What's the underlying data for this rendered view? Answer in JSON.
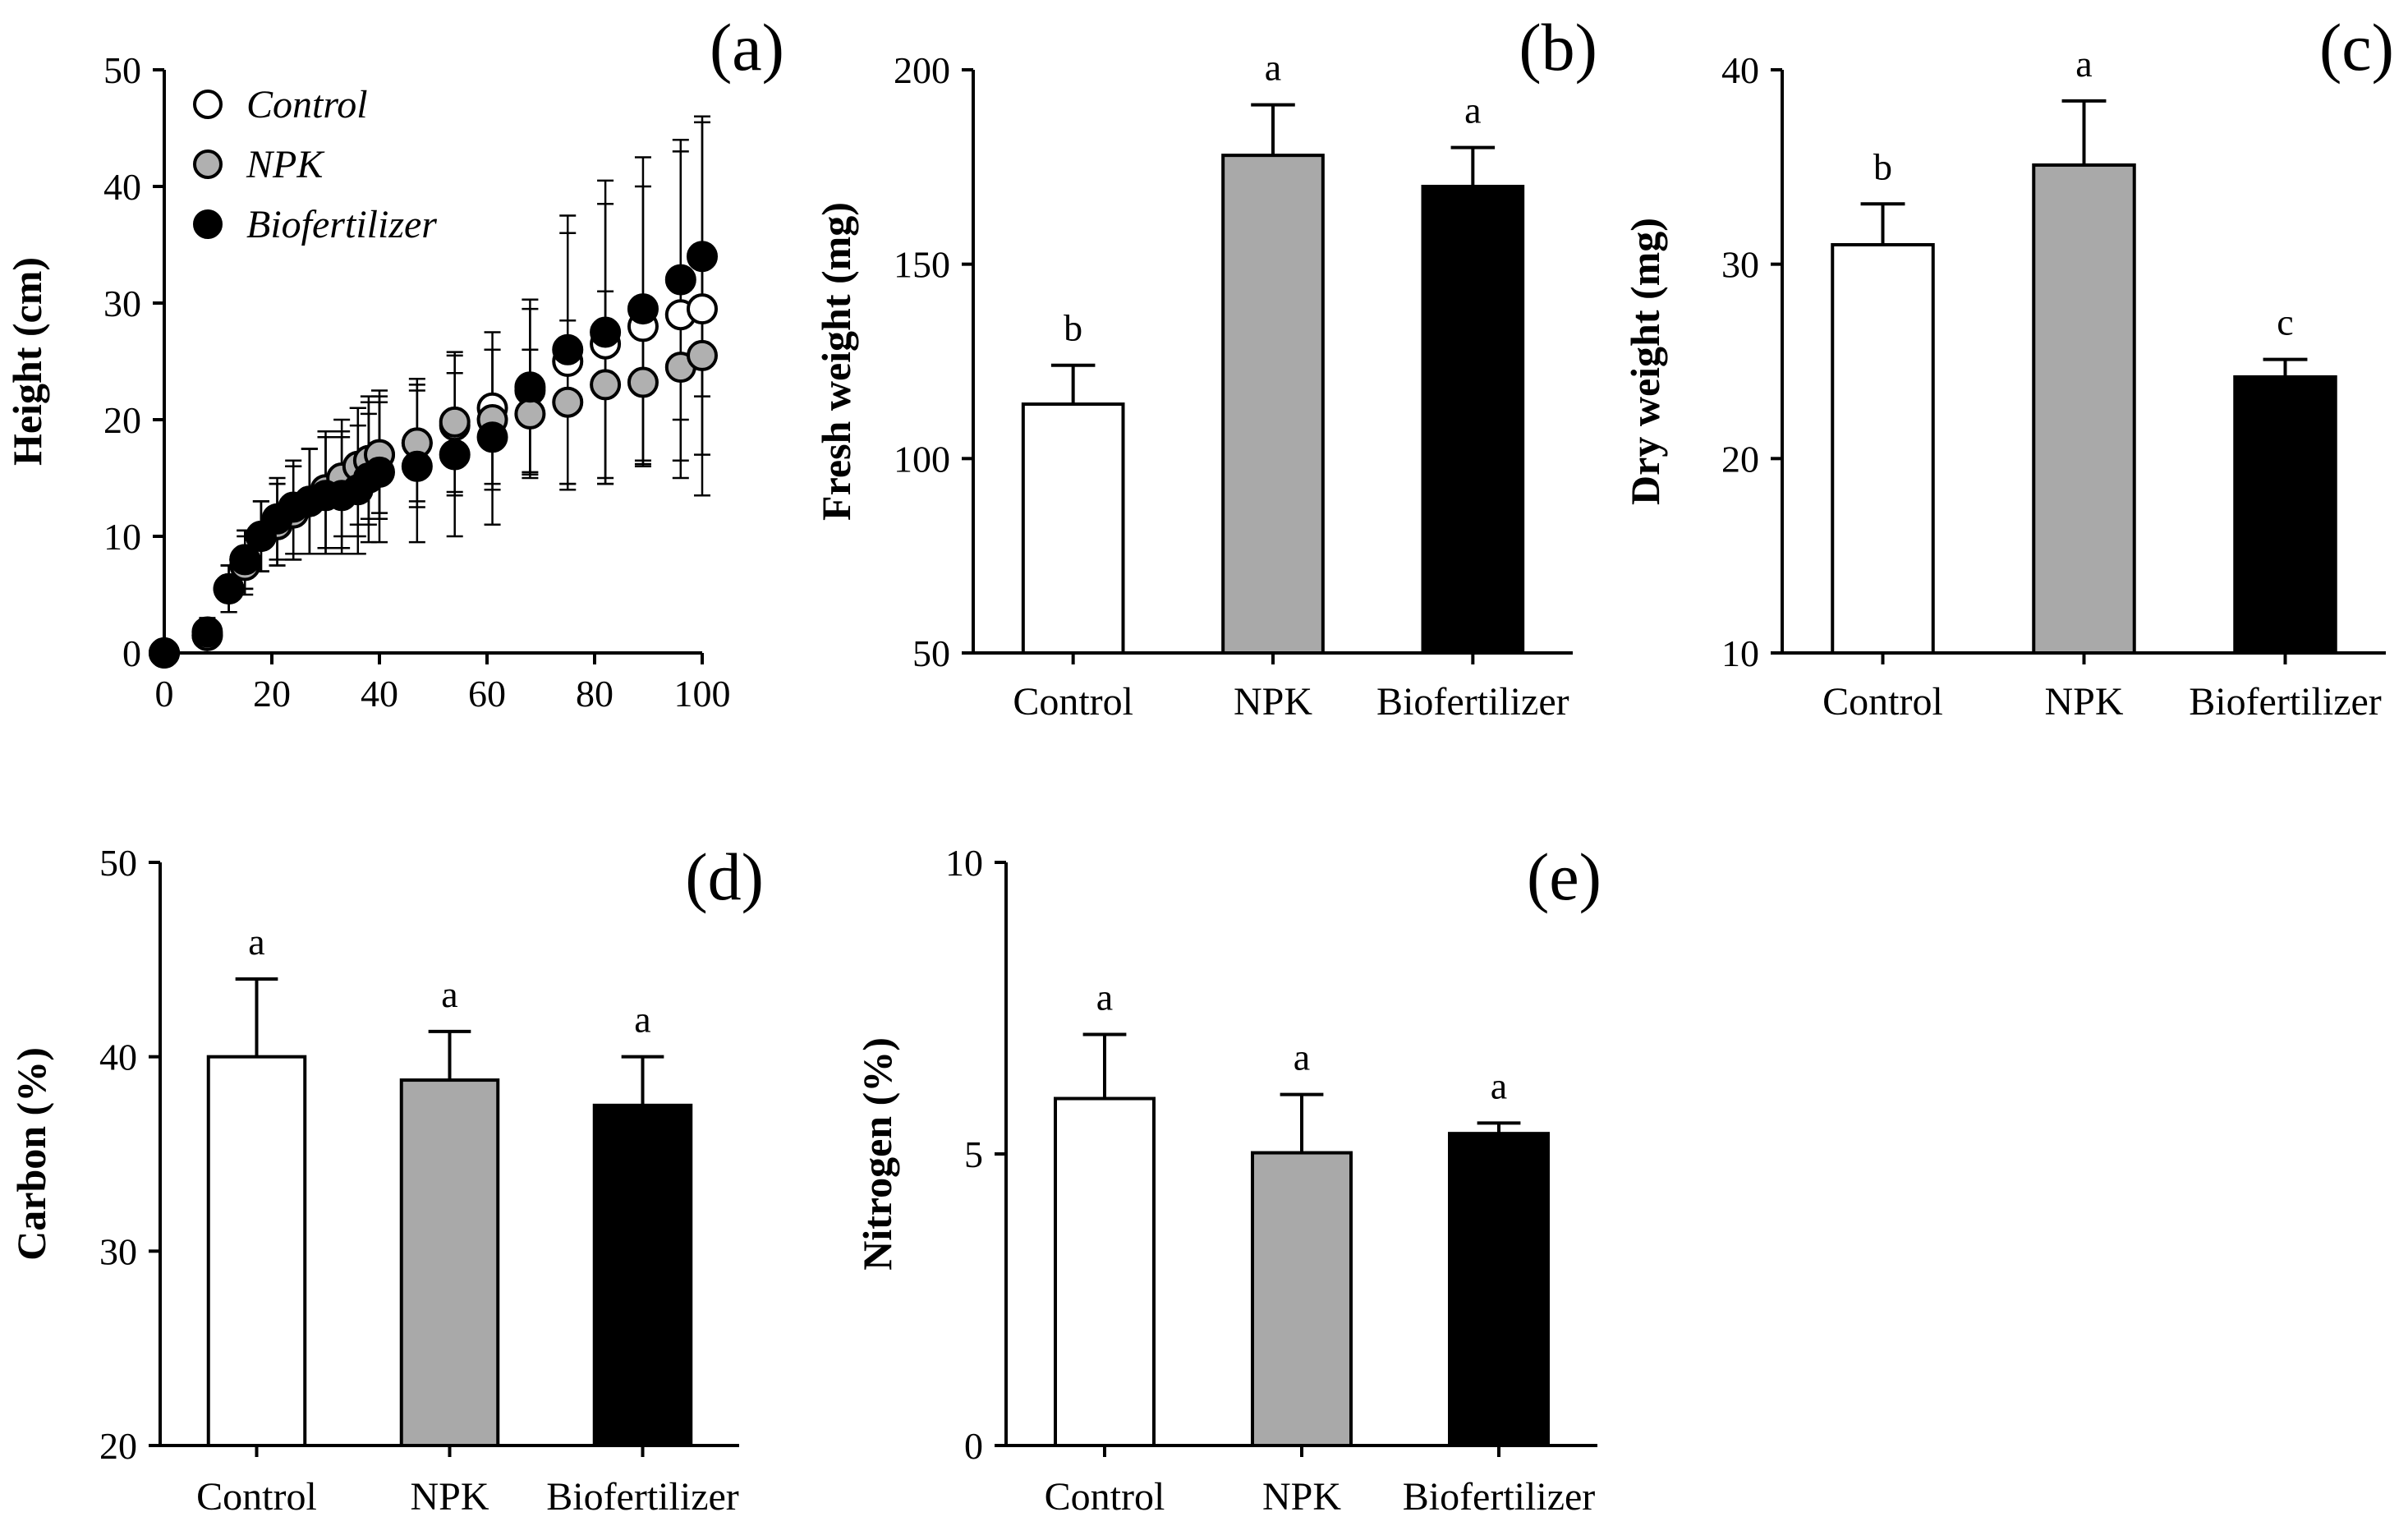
{
  "chart_data": [
    {
      "id": "a",
      "panel_label": "(a)",
      "type": "scatter",
      "xlabel": "",
      "ylabel": "Height (cm)",
      "xlim": [
        0,
        100
      ],
      "ylim": [
        0,
        50
      ],
      "xticks": [
        0,
        20,
        40,
        60,
        80,
        100
      ],
      "yticks": [
        0,
        10,
        20,
        30,
        40,
        50
      ],
      "legend_position": "top-left",
      "series": [
        {
          "name": "Control",
          "color": "#ffffff",
          "x": [
            0,
            8,
            12,
            15,
            18,
            21,
            24,
            27,
            30,
            33,
            36,
            38,
            40,
            47,
            54,
            61,
            68,
            75,
            82,
            89,
            96,
            100
          ],
          "y": [
            0,
            1.5,
            5.5,
            8,
            10,
            11,
            12,
            13,
            13.5,
            14,
            15.5,
            16.5,
            17,
            18,
            19.5,
            21,
            22.5,
            25,
            26.5,
            28,
            29,
            29.5
          ],
          "err": [
            0,
            1,
            2,
            2.5,
            3,
            3.5,
            4,
            4.5,
            5,
            5,
            5.5,
            5.5,
            5.5,
            5.5,
            6,
            6.5,
            7,
            11,
            12,
            12,
            14,
            16
          ]
        },
        {
          "name": "NPK",
          "color": "#b0b0b0",
          "x": [
            0,
            8,
            12,
            15,
            18,
            21,
            24,
            27,
            30,
            33,
            36,
            38,
            40,
            47,
            54,
            61,
            68,
            75,
            82,
            89,
            96,
            100
          ],
          "y": [
            0,
            1.5,
            5.5,
            7.5,
            10,
            11,
            12,
            13,
            14,
            15,
            16,
            16.5,
            17,
            18,
            19.8,
            20,
            20.5,
            21.5,
            23,
            23.2,
            24.5,
            25.5
          ],
          "err": [
            0,
            1,
            2,
            2.5,
            3,
            3.5,
            4,
            4.5,
            5,
            5,
            5,
            5,
            5,
            5,
            6,
            6,
            5.5,
            7,
            8,
            7,
            8,
            8.5
          ]
        },
        {
          "name": "Biofertilizer",
          "color": "#000000",
          "x": [
            0,
            8,
            12,
            15,
            18,
            21,
            24,
            27,
            30,
            33,
            36,
            38,
            40,
            47,
            54,
            61,
            68,
            75,
            82,
            89,
            96,
            100
          ],
          "y": [
            0,
            1.8,
            5.5,
            8,
            10,
            11.5,
            12.5,
            13,
            13.5,
            13.5,
            14,
            15,
            15.5,
            16,
            17,
            18.5,
            22.8,
            26,
            27.5,
            29.5,
            32,
            34
          ],
          "err": [
            0,
            1.2,
            2,
            2.5,
            3,
            3.5,
            4,
            4.5,
            5,
            5,
            5.5,
            5.5,
            6,
            6.5,
            7,
            7.5,
            7.5,
            11.5,
            13,
            13,
            12,
            12
          ]
        }
      ]
    },
    {
      "id": "b",
      "panel_label": "(b)",
      "type": "bar",
      "ylabel": "Fresh weight (mg)",
      "ylim": [
        50,
        200
      ],
      "yticks": [
        50,
        100,
        150,
        200
      ],
      "categories": [
        "Control",
        "NPK",
        "Biofertilizer"
      ],
      "values": [
        114,
        178,
        170
      ],
      "errors": [
        10,
        13,
        10
      ],
      "significance": [
        "b",
        "a",
        "a"
      ],
      "colors": [
        "#ffffff",
        "#a9a9a9",
        "#000000"
      ]
    },
    {
      "id": "c",
      "panel_label": "(c)",
      "type": "bar",
      "ylabel": "Dry weight (mg)",
      "ylim": [
        10,
        40
      ],
      "yticks": [
        10,
        20,
        30,
        40
      ],
      "categories": [
        "Control",
        "NPK",
        "Biofertilizer"
      ],
      "values": [
        31,
        35.1,
        24.2
      ],
      "errors": [
        2.1,
        3.3,
        0.9
      ],
      "significance": [
        "b",
        "a",
        "c"
      ],
      "colors": [
        "#ffffff",
        "#a9a9a9",
        "#000000"
      ]
    },
    {
      "id": "d",
      "panel_label": "(d)",
      "type": "bar",
      "ylabel": "Carbon (%)",
      "ylim": [
        20,
        50
      ],
      "yticks": [
        20,
        30,
        40,
        50
      ],
      "categories": [
        "Control",
        "NPK",
        "Biofertilizer"
      ],
      "values": [
        40,
        38.8,
        37.5
      ],
      "errors": [
        4,
        2.5,
        2.5
      ],
      "significance": [
        "a",
        "a",
        "a"
      ],
      "colors": [
        "#ffffff",
        "#a9a9a9",
        "#000000"
      ]
    },
    {
      "id": "e",
      "panel_label": "(e)",
      "type": "bar",
      "ylabel": "Nitrogen (%)",
      "ylim": [
        0,
        10
      ],
      "yticks": [
        0,
        5,
        10
      ],
      "categories": [
        "Control",
        "NPK",
        "Biofertilizer"
      ],
      "values": [
        5.95,
        5.02,
        5.35
      ],
      "errors": [
        1.1,
        1.0,
        0.18
      ],
      "significance": [
        "a",
        "a",
        "a"
      ],
      "colors": [
        "#ffffff",
        "#a9a9a9",
        "#000000"
      ]
    }
  ]
}
